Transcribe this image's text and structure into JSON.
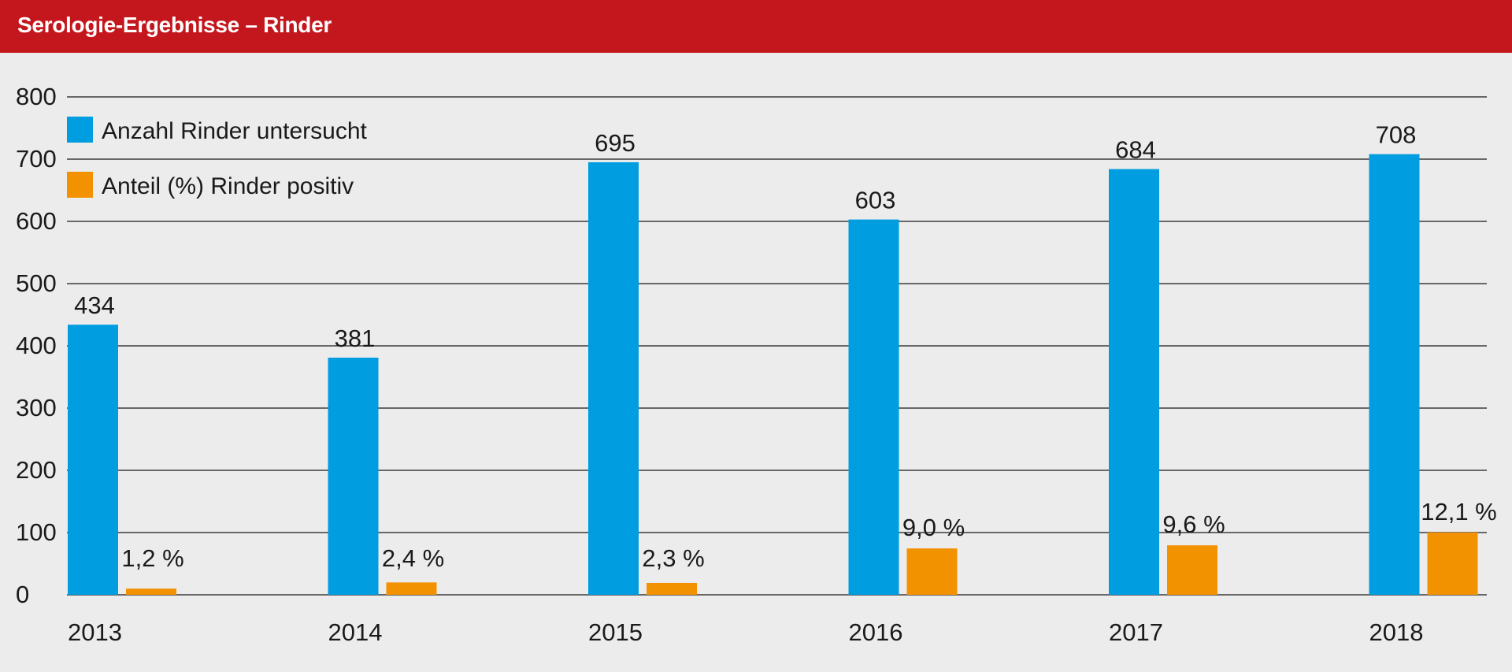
{
  "header": {
    "title": "Serologie-Ergebnisse – Rinder"
  },
  "colors": {
    "header_bg": "#c4171d",
    "background": "#ececec",
    "series_count": "#009ee0",
    "series_percent": "#f39200",
    "gridline": "#1a1a1a"
  },
  "chart_data": {
    "type": "bar",
    "title": "Serologie-Ergebnisse – Rinder",
    "xlabel": "",
    "ylabel": "",
    "categories": [
      "2013",
      "2014",
      "2015",
      "2016",
      "2017",
      "2018"
    ],
    "yticks": [
      "0",
      "100",
      "200",
      "300",
      "400",
      "500",
      "600",
      "700",
      "800"
    ],
    "ylim": [
      0,
      800
    ],
    "grid": true,
    "legend_position": "top-left",
    "series": [
      {
        "name": "Anzahl Rinder untersucht",
        "values": [
          434,
          381,
          695,
          603,
          684,
          708
        ],
        "labels": [
          "434",
          "381",
          "695",
          "603",
          "684",
          "708"
        ],
        "color": "#009ee0"
      },
      {
        "name": "Anteil (%) Rinder positiv",
        "values": [
          1.2,
          2.4,
          2.3,
          9.0,
          9.6,
          12.1
        ],
        "labels": [
          "1,2 %",
          "2,4 %",
          "2,3 %",
          "9,0 %",
          "9,6 %",
          "12,1 %"
        ],
        "color": "#f39200"
      }
    ]
  }
}
